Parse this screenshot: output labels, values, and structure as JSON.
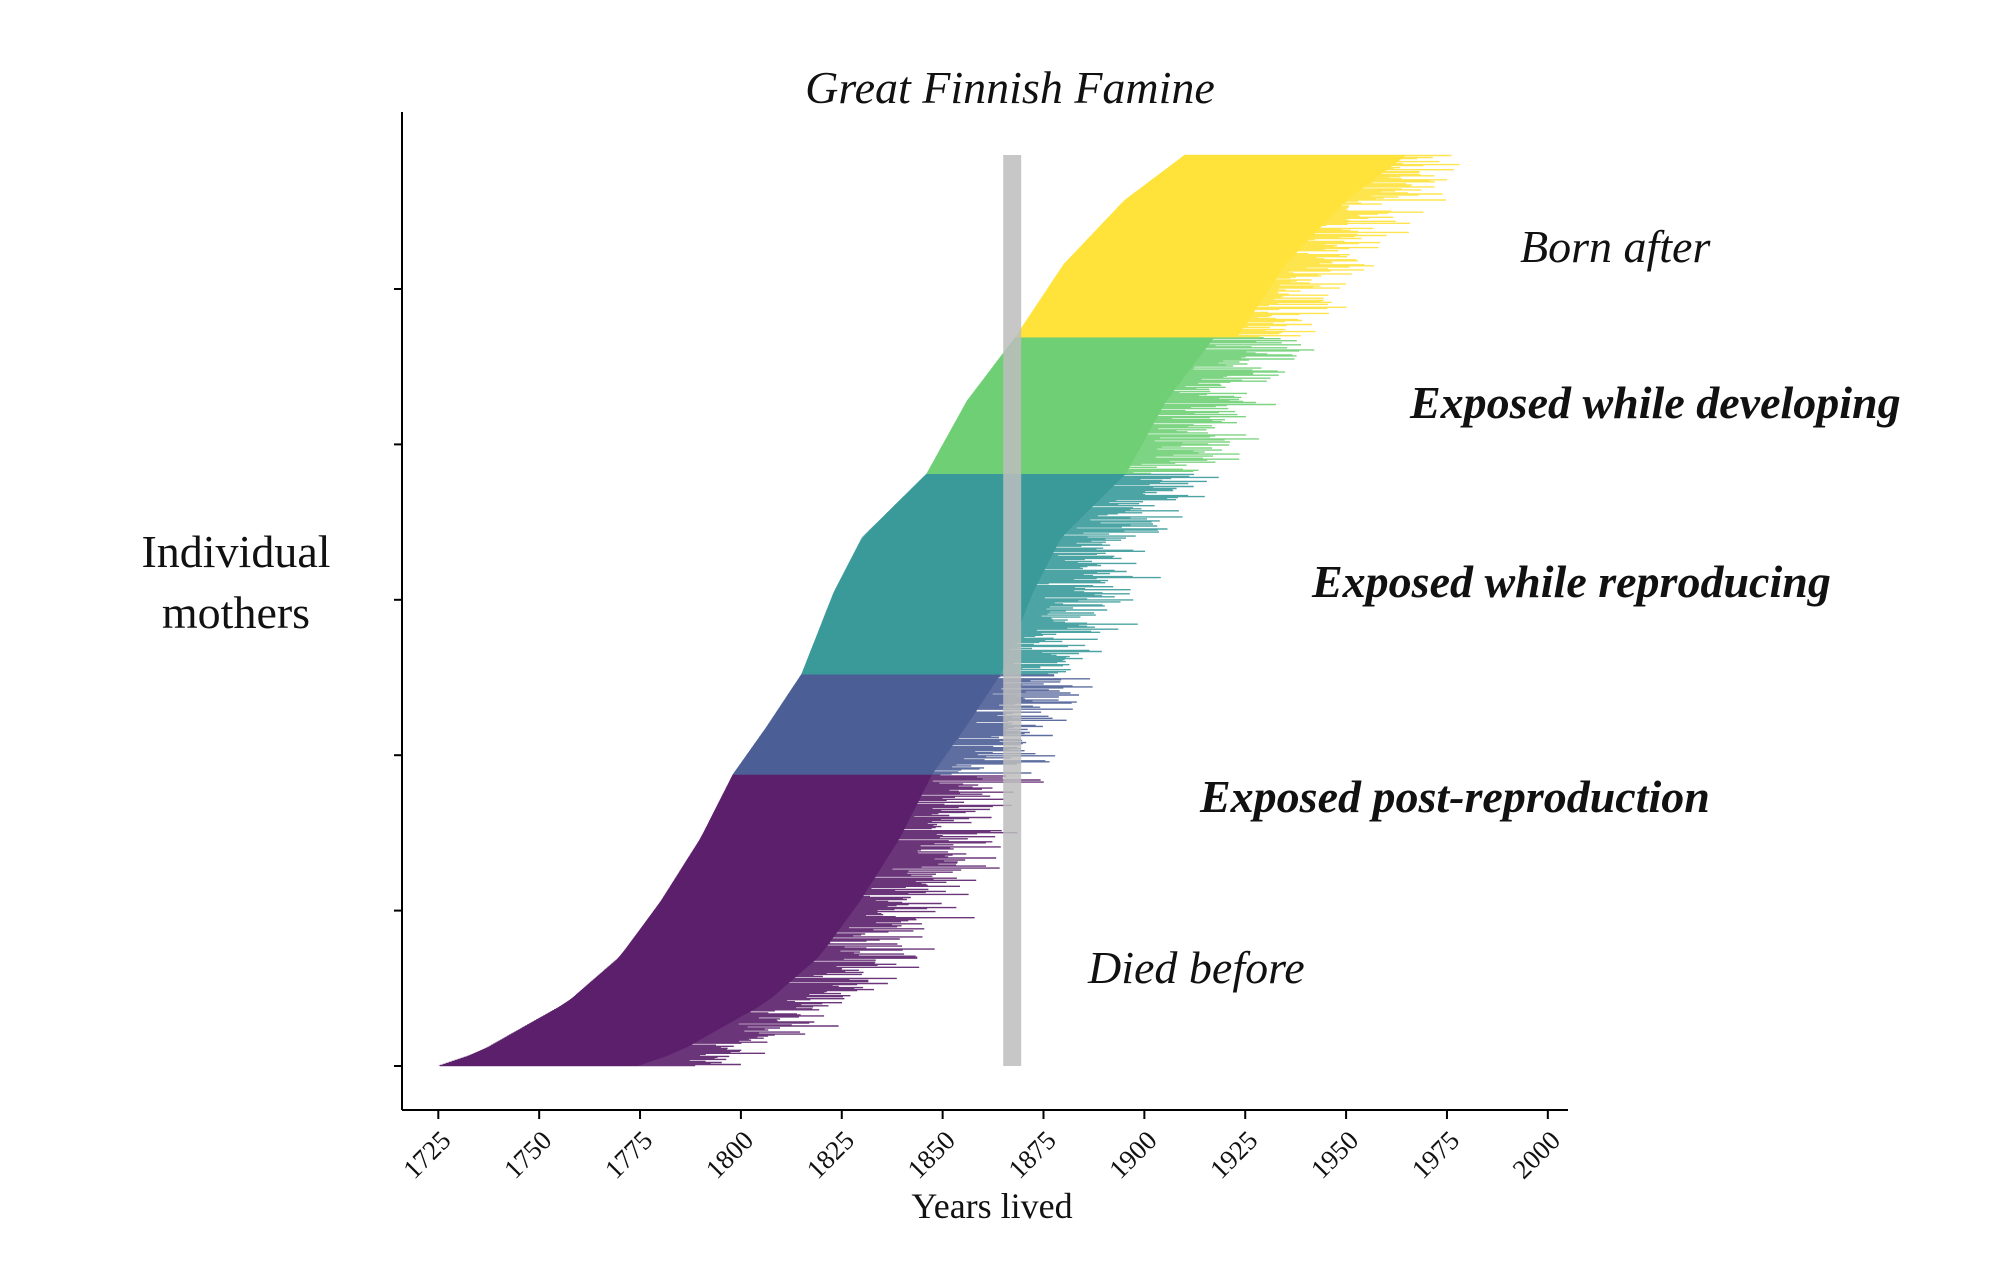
{
  "chart_data": {
    "type": "bar",
    "orientation": "horizontal-lifespan-ranges",
    "title": "Great Finnish Famine",
    "xlabel": "Years lived",
    "ylabel": "Individual mothers",
    "x_ticks": [
      1725,
      1750,
      1775,
      1800,
      1825,
      1850,
      1875,
      1900,
      1925,
      1950,
      1975,
      2000
    ],
    "xlim": [
      1716,
      2005
    ],
    "famine_years": [
      1866,
      1868
    ],
    "famine_color": "#bdbdbd",
    "grid": false,
    "legend": "none",
    "groups": [
      {
        "name": "Died before",
        "label_style": "italic",
        "color": "#5b1f6b",
        "rows": [
          0.0,
          0.32
        ],
        "birth_curve": [
          [
            0.0,
            1725
          ],
          [
            0.015,
            1735
          ],
          [
            0.04,
            1745
          ],
          [
            0.07,
            1757
          ],
          [
            0.12,
            1770
          ],
          [
            0.18,
            1780
          ],
          [
            0.25,
            1790
          ],
          [
            0.32,
            1798
          ]
        ]
      },
      {
        "name": "Exposed post-reproduction",
        "label_style": "bold-italic",
        "color": "#4c5e96",
        "rows": [
          0.32,
          0.43
        ],
        "birth_curve": [
          [
            0.32,
            1798
          ],
          [
            0.37,
            1806
          ],
          [
            0.43,
            1815
          ]
        ]
      },
      {
        "name": "Exposed while reproducing",
        "label_style": "bold-italic",
        "color": "#3a9a9a",
        "rows": [
          0.43,
          0.65
        ],
        "birth_curve": [
          [
            0.43,
            1815
          ],
          [
            0.52,
            1823
          ],
          [
            0.58,
            1830
          ],
          [
            0.65,
            1846
          ]
        ]
      },
      {
        "name": "Exposed while developing",
        "label_style": "bold-italic",
        "color": "#6fcf75",
        "rows": [
          0.65,
          0.8
        ],
        "birth_curve": [
          [
            0.65,
            1846
          ],
          [
            0.73,
            1856
          ],
          [
            0.8,
            1868
          ]
        ]
      },
      {
        "name": "Born after",
        "label_style": "italic",
        "color": "#ffe23a",
        "rows": [
          0.8,
          1.0
        ],
        "birth_curve": [
          [
            0.8,
            1868
          ],
          [
            0.88,
            1880
          ],
          [
            0.95,
            1895
          ],
          [
            1.0,
            1910
          ]
        ]
      }
    ],
    "lifespan_years": {
      "mean": 62,
      "spread": 14
    }
  }
}
